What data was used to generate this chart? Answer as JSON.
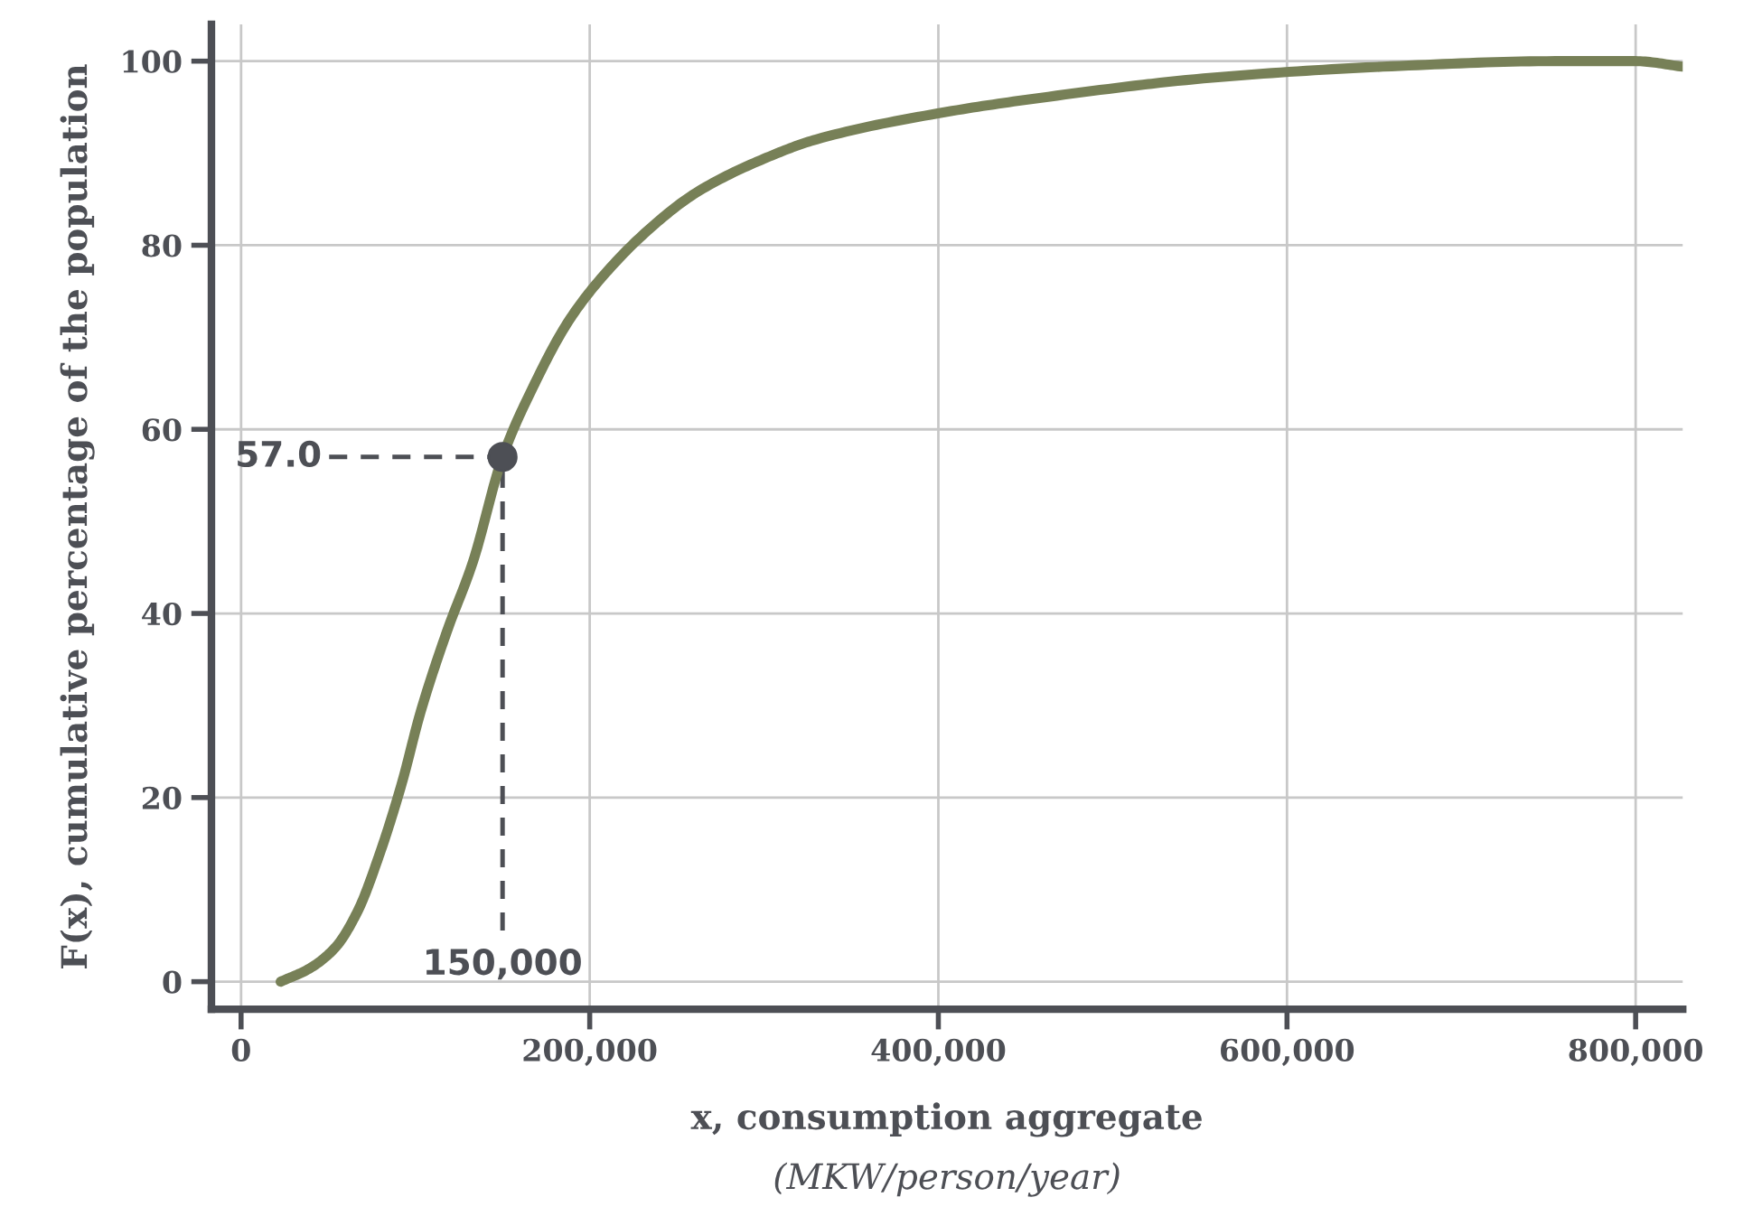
{
  "chart_data": {
    "type": "line",
    "xlabel": "x, consumption aggregate",
    "ylabel": "F(x), cumulative percentage of the population",
    "annotations": [
      "(MKW/person/year)"
    ],
    "ref_lines": [
      {
        "axis": "y",
        "value": 57,
        "label": "57.0",
        "color": "#4d4f55",
        "line_style": "dashed"
      },
      {
        "axis": "x",
        "value": 150000,
        "label": "150,000",
        "color": "#4d4f55",
        "line_style": "dashed"
      }
    ],
    "series": [
      {
        "color": "#778057",
        "x": [
          22700,
          39000,
          54000,
          67000,
          79000,
          92000,
          103000,
          118000,
          133000,
          150000,
          167500,
          187000,
          202000,
          231500,
          261000,
          300000,
          330000,
          399000,
          458000,
          557000,
          655000,
          754000,
          800000,
          827000
        ],
        "values": [
          0,
          1.4,
          3.7,
          7.7,
          13.6,
          21.4,
          29.3,
          38,
          45.6,
          57,
          64.6,
          71.5,
          75.4,
          81.3,
          85.7,
          89.4,
          91.5,
          94.3,
          96,
          98.2,
          99.4,
          100,
          100,
          99.4
        ]
      },
      {
        "type": "scatter",
        "color": "#4d4f55",
        "x": [
          150000
        ],
        "values": [
          57
        ]
      }
    ],
    "xlim": [
      -17000,
      827000
    ],
    "ylim": [
      -3,
      104
    ],
    "xticks": [
      0,
      {
        "value": 200000,
        "label": "200,000"
      },
      {
        "value": 400000,
        "label": "400,000"
      },
      {
        "value": 600000,
        "label": "600,000"
      },
      {
        "value": 800000,
        "label": "800,000"
      }
    ],
    "yticks": [
      0,
      20,
      40,
      60,
      80,
      100
    ],
    "grid": true,
    "legend": false
  }
}
